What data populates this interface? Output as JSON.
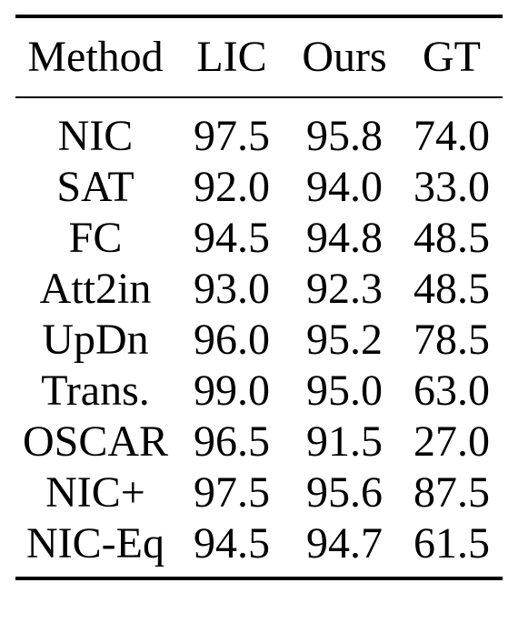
{
  "table": {
    "headers": [
      "Method",
      "LIC",
      "Ours",
      "GT"
    ],
    "rows": [
      [
        "NIC",
        "97.5",
        "95.8",
        "74.0"
      ],
      [
        "SAT",
        "92.0",
        "94.0",
        "33.0"
      ],
      [
        "FC",
        "94.5",
        "94.8",
        "48.5"
      ],
      [
        "Att2in",
        "93.0",
        "92.3",
        "48.5"
      ],
      [
        "UpDn",
        "96.0",
        "95.2",
        "78.5"
      ],
      [
        "Trans.",
        "99.0",
        "95.0",
        "63.0"
      ],
      [
        "OSCAR",
        "96.5",
        "91.5",
        "27.0"
      ],
      [
        "NIC+",
        "97.5",
        "95.6",
        "87.5"
      ],
      [
        "NIC-Eq",
        "94.5",
        "94.7",
        "61.5"
      ]
    ]
  }
}
